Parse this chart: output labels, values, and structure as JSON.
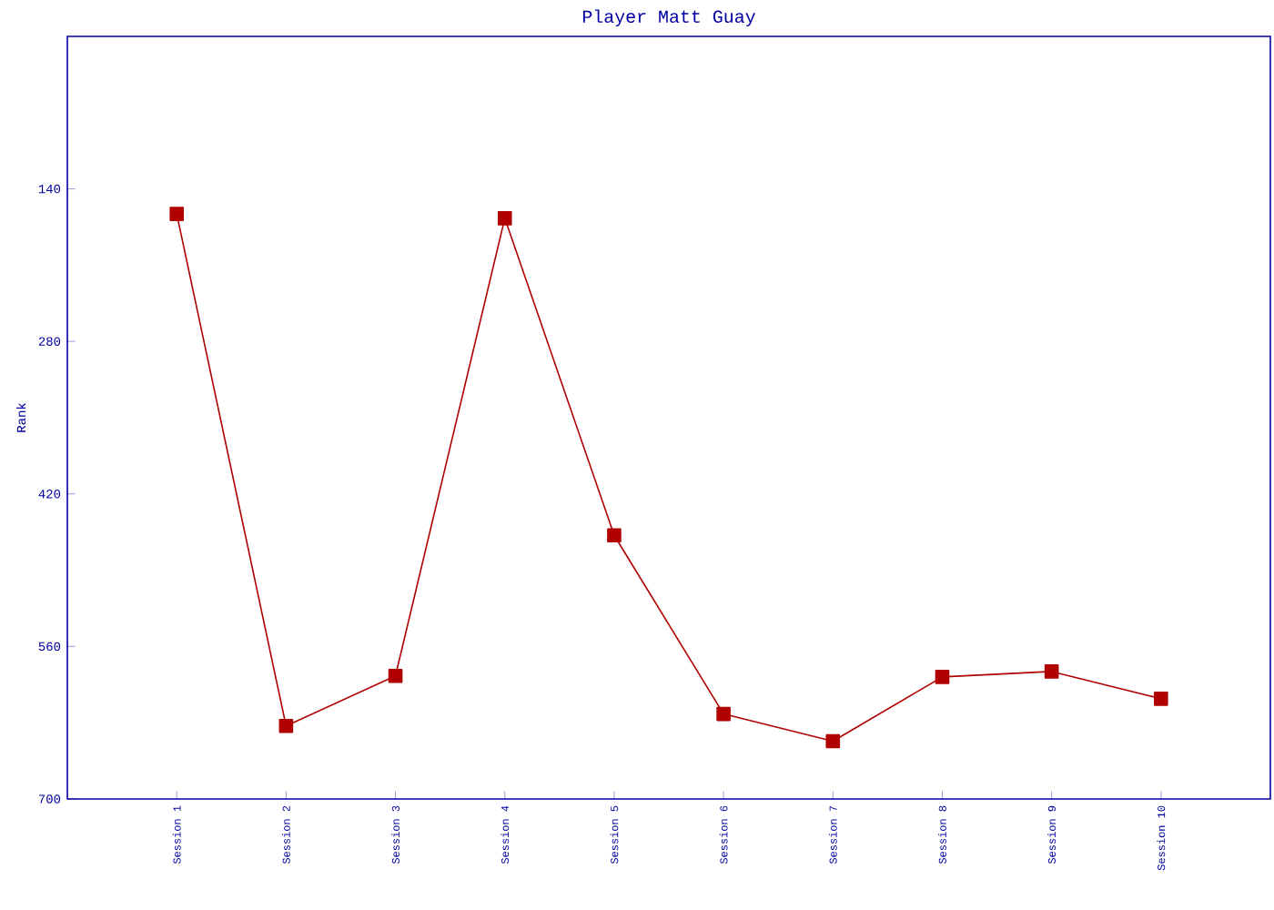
{
  "chart_data": {
    "type": "line",
    "title": "Player Matt Guay",
    "ylabel": "Rank",
    "categories": [
      "Session 1",
      "Session 2",
      "Session 3",
      "Session 4",
      "Session 5",
      "Session 6",
      "Session 7",
      "Session 8",
      "Session 9",
      "Session 10"
    ],
    "series": [
      {
        "color": "#b00000",
        "values": [
          163,
          633,
          587,
          167,
          458,
          622,
          647,
          588,
          583,
          608
        ]
      }
    ],
    "ylim": [
      700,
      0
    ],
    "yticks": [
      140,
      280,
      420,
      560,
      700
    ],
    "marker": "square",
    "line_style": "solid",
    "grid": false,
    "legend": false
  }
}
